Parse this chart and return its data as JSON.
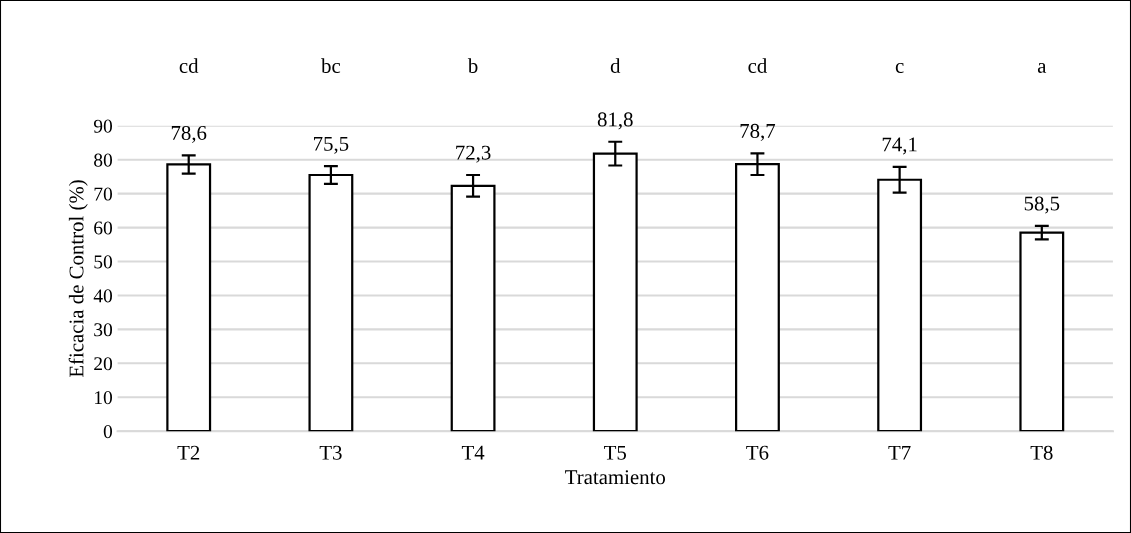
{
  "chart_data": {
    "type": "bar",
    "xlabel": "Tratamiento",
    "ylabel": "Eficacia de Control (%)",
    "categories": [
      "T2",
      "T3",
      "T4",
      "T5",
      "T6",
      "T7",
      "T8"
    ],
    "values": [
      78.6,
      75.5,
      72.3,
      81.8,
      78.7,
      74.1,
      58.5
    ],
    "value_labels": [
      "78,6",
      "75,5",
      "72,3",
      "81,8",
      "78,7",
      "74,1",
      "58,5"
    ],
    "errors": [
      2.7,
      2.6,
      3.2,
      3.5,
      3.2,
      3.8,
      2.0
    ],
    "color": "#ffffff",
    "ylim": [
      0,
      90
    ],
    "yticks": [
      0,
      10,
      20,
      30,
      40,
      50,
      60,
      70,
      80,
      90
    ],
    "grid": "y",
    "legend": false,
    "annotations": [
      "cd",
      "bc",
      "b",
      "d",
      "cd",
      "c",
      "a"
    ]
  }
}
